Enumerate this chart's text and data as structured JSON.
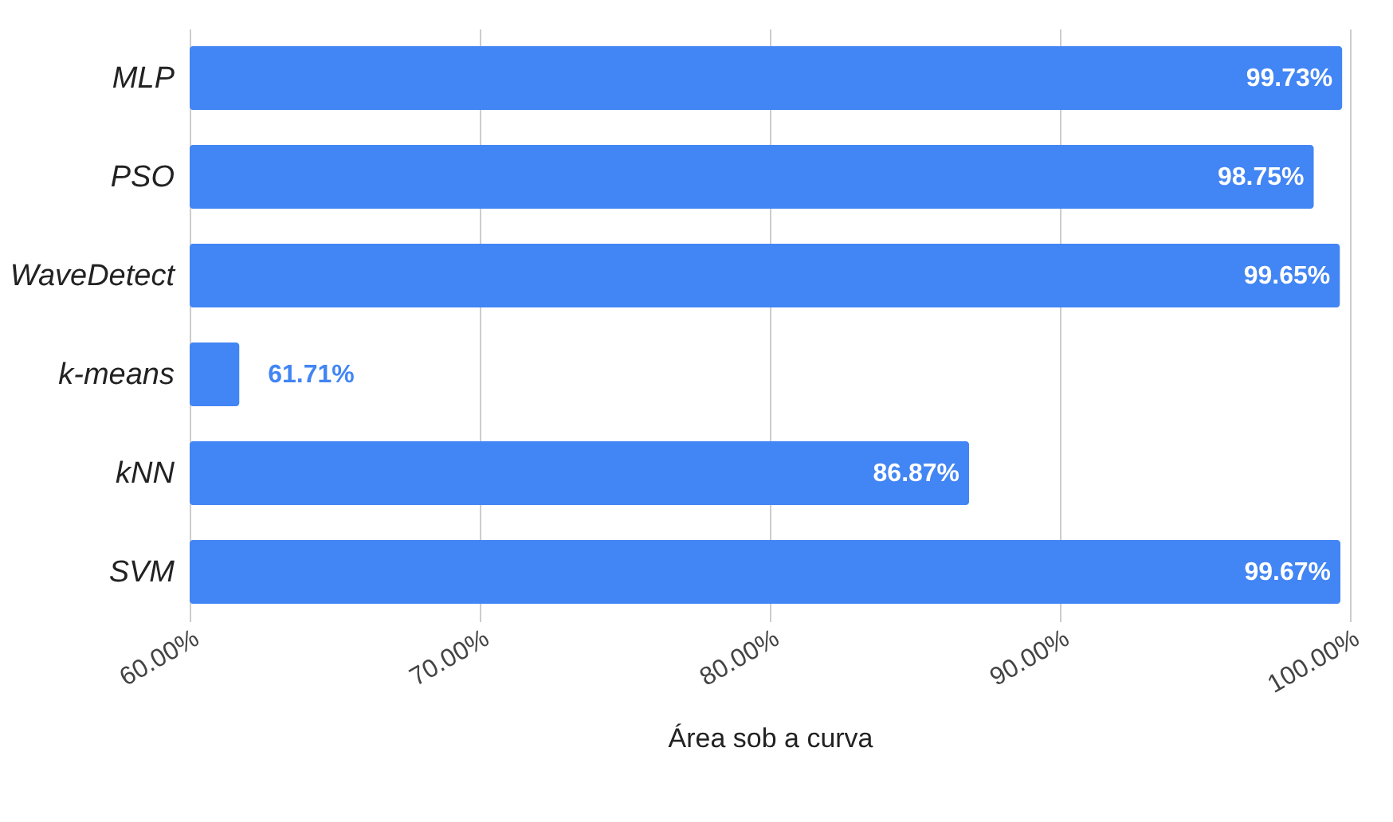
{
  "chart_data": {
    "type": "bar",
    "orientation": "horizontal",
    "xlabel": "Área sob a curva",
    "categories": [
      "MLP",
      "PSO",
      "WaveDetect",
      "k-means",
      "kNN",
      "SVM"
    ],
    "values": [
      99.73,
      98.75,
      99.65,
      61.71,
      86.87,
      99.67
    ],
    "color": "#4285f4",
    "value_labels": [
      "99.73%",
      "98.75%",
      "99.65%",
      "61.71%",
      "86.87%",
      "99.67%"
    ],
    "xlim": [
      60,
      100
    ],
    "xticks": [
      {
        "value": 60,
        "label": "60.00%"
      },
      {
        "value": 70,
        "label": "70.00%"
      },
      {
        "value": 80,
        "label": "80.00%"
      },
      {
        "value": 90,
        "label": "90.00%"
      },
      {
        "value": 100,
        "label": "100.00%"
      }
    ],
    "grid": "x"
  }
}
